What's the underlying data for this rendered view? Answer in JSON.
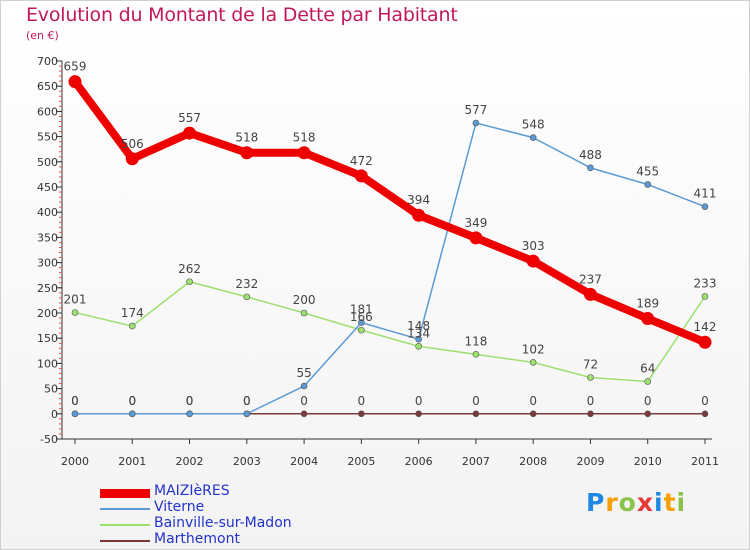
{
  "chart_data": {
    "type": "line",
    "title": "Evolution du Montant de la Dette par Habitant",
    "subtitle": "(en €)",
    "categories": [
      "2000",
      "2001",
      "2002",
      "2003",
      "2004",
      "2005",
      "2006",
      "2007",
      "2008",
      "2009",
      "2010",
      "2011"
    ],
    "ylim": [
      -50,
      700
    ],
    "yticks": [
      -50,
      0,
      50,
      100,
      150,
      200,
      250,
      300,
      350,
      400,
      450,
      500,
      550,
      600,
      650,
      700
    ],
    "grid": false,
    "legend_position": "bottom-left",
    "series": [
      {
        "name": "MAIZIèRES",
        "color": "#ee0000",
        "values": [
          659,
          506,
          557,
          518,
          518,
          472,
          394,
          349,
          303,
          237,
          189,
          142
        ]
      },
      {
        "name": "Viterne",
        "color": "#5b9bd5",
        "values": [
          0,
          0,
          0,
          0,
          55,
          181,
          148,
          577,
          548,
          488,
          455,
          411
        ]
      },
      {
        "name": "Bainville-sur-Madon",
        "color": "#9ee070",
        "values": [
          201,
          174,
          262,
          232,
          200,
          166,
          134,
          118,
          102,
          72,
          64,
          233
        ]
      },
      {
        "name": "Marthemont",
        "color": "#7a3a3a",
        "values": [
          0,
          0,
          0,
          0,
          0,
          0,
          0,
          0,
          0,
          0,
          0,
          0
        ]
      }
    ]
  },
  "logo": {
    "letters": [
      "P",
      "r",
      "o",
      "x",
      "i",
      "t",
      "i"
    ],
    "colors": [
      "#1e88e5",
      "#f4a000",
      "#8bc34a",
      "#e53935",
      "#1e88e5",
      "#f4a000",
      "#8bc34a"
    ]
  }
}
